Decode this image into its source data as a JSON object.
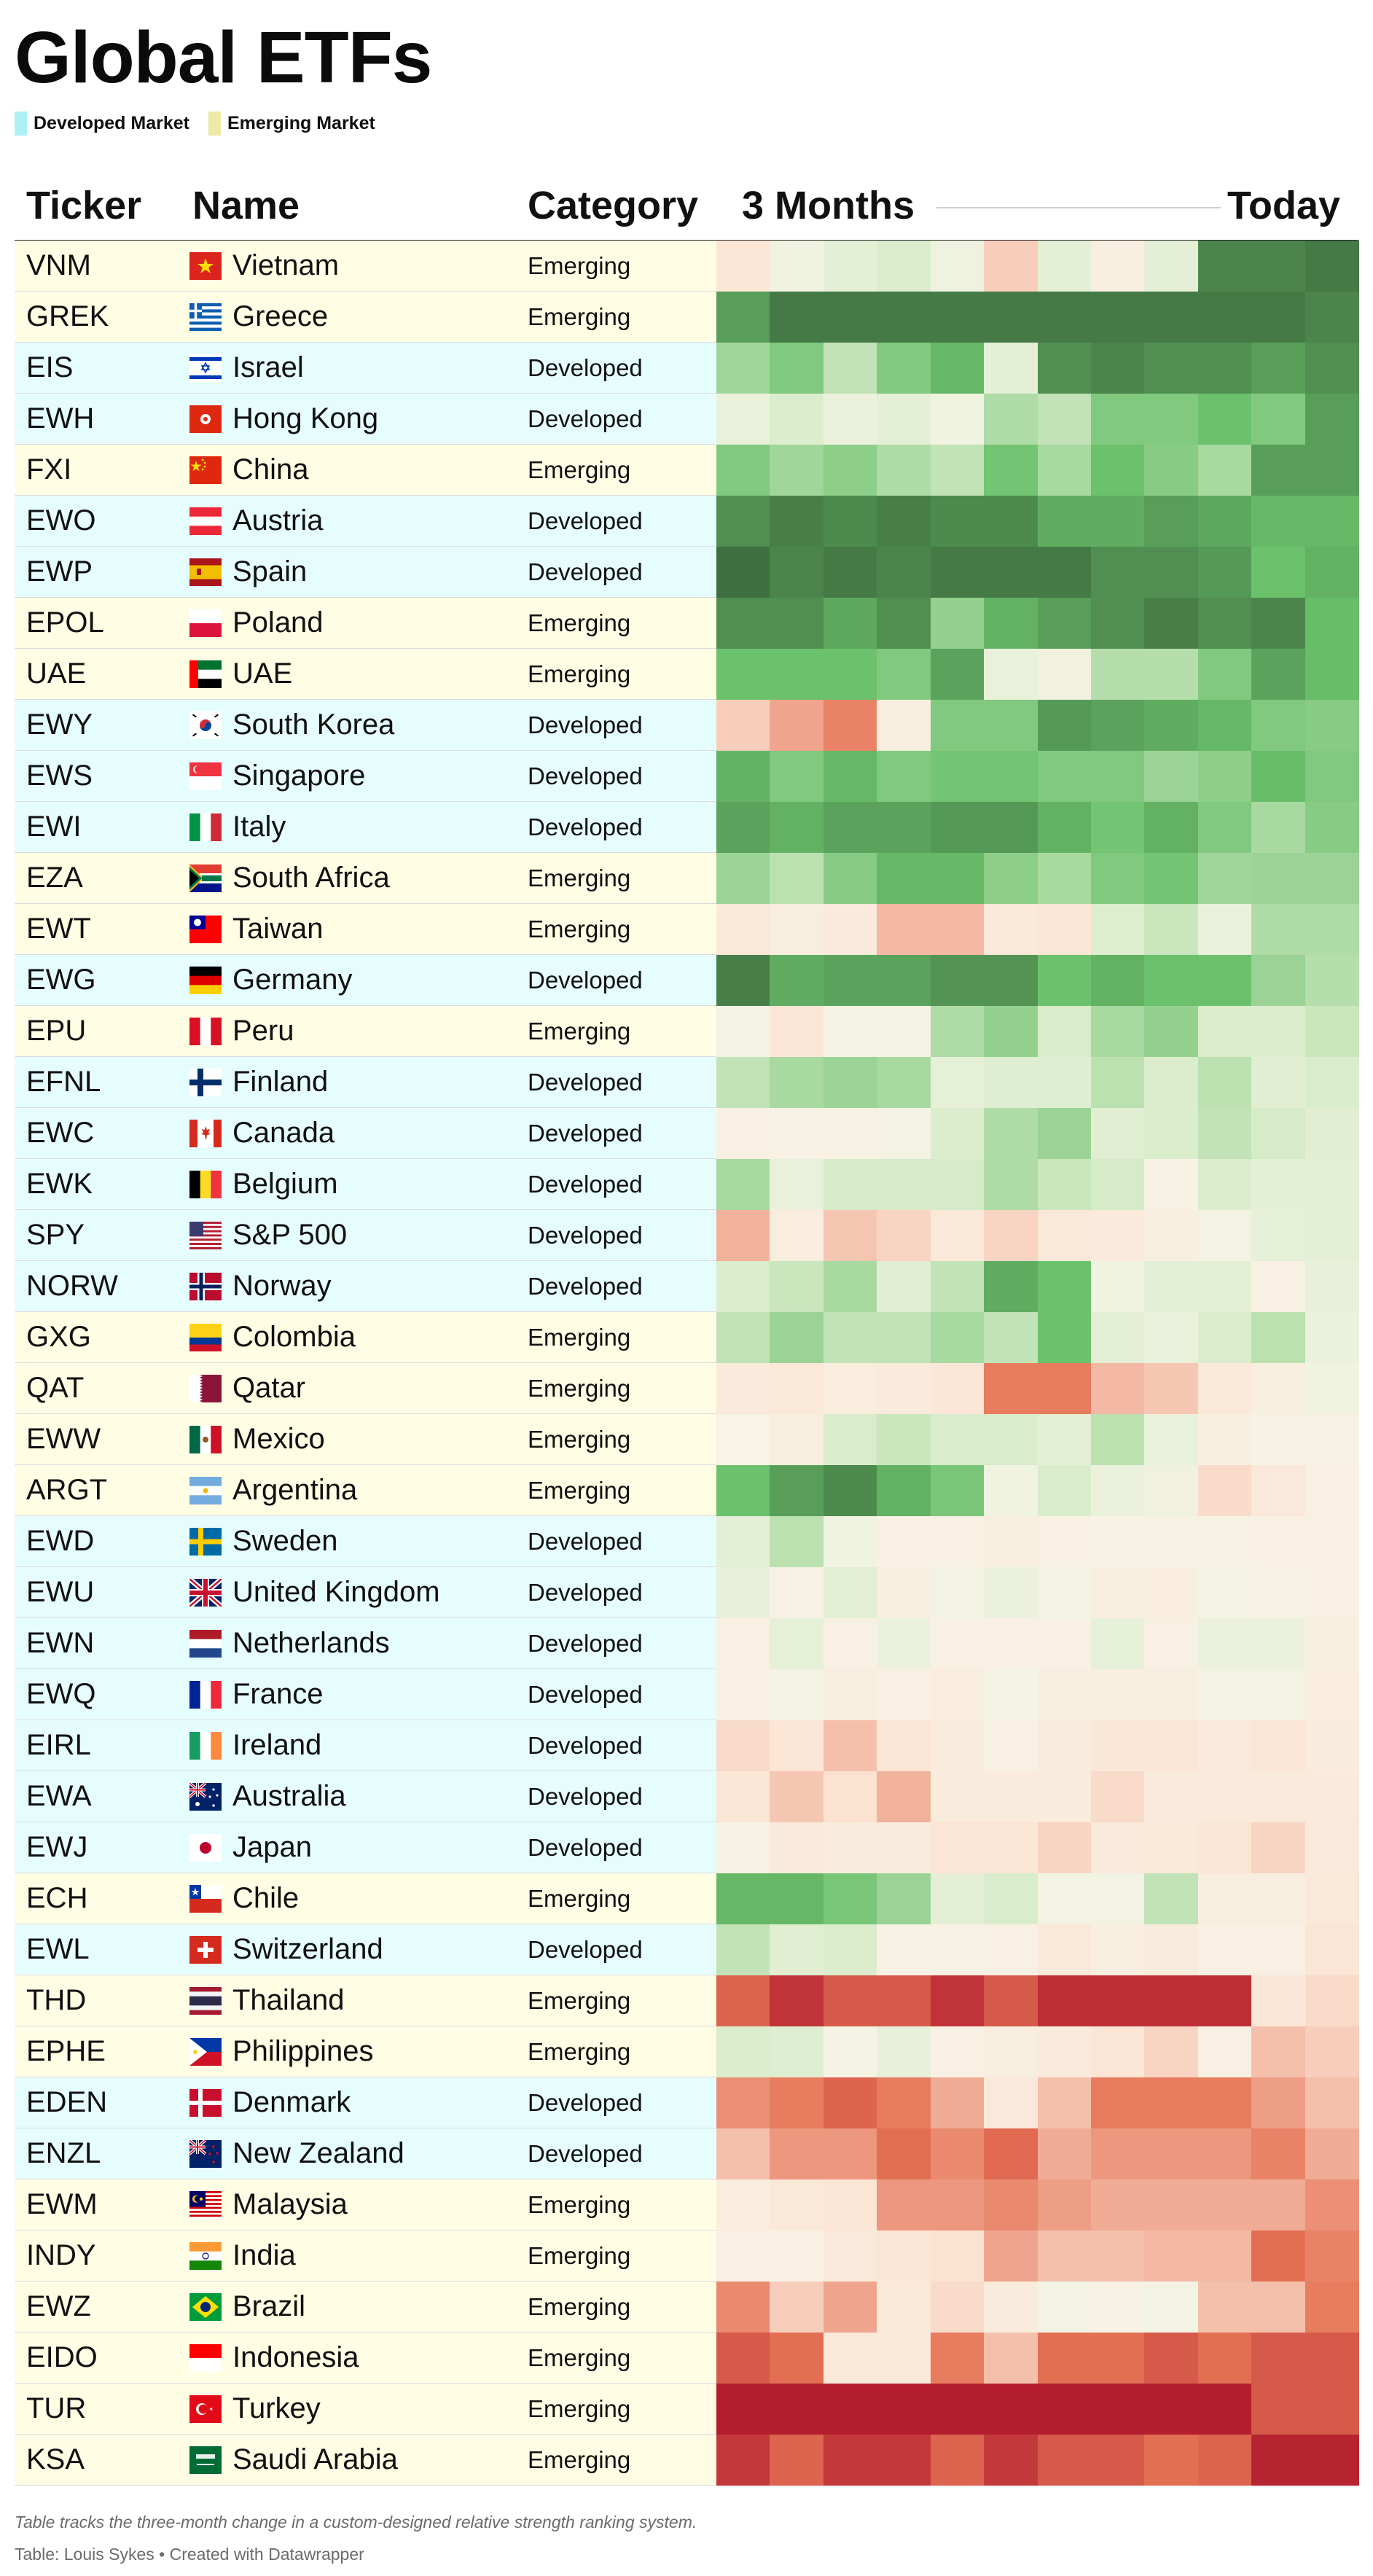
{
  "title": "Global ETFs",
  "legend": [
    {
      "label": "Developed Market",
      "color": "#aef1f3"
    },
    {
      "label": "Emerging Market",
      "color": "#ede9a7"
    }
  ],
  "header": {
    "ticker": "Ticker",
    "name": "Name",
    "category": "Category",
    "period_start": "3 Months",
    "period_end": "Today"
  },
  "row_colors": {
    "Developed": "#e6fdfe",
    "Emerging": "#fffde4"
  },
  "chart_data": {
    "type": "heatmap",
    "title": "Global ETFs",
    "color_scale": {
      "min": -5,
      "max": 5,
      "colors": [
        "#b0182c",
        "#e57355",
        "#fbe4d4",
        "#f7f4e6",
        "#d8ecca",
        "#6ac06b",
        "#3d6b3e"
      ]
    },
    "columns": 12,
    "rows": [
      {
        "ticker": "VNM",
        "name": "Vietnam",
        "category": "Emerging",
        "flag": "vietnam",
        "values": [
          -1.5,
          0.3,
          1,
          1.5,
          0.5,
          -2,
          1,
          -0.5,
          1,
          4.5,
          4.5,
          4.7
        ]
      },
      {
        "ticker": "GREK",
        "name": "Greece",
        "category": "Emerging",
        "flag": "greece",
        "values": [
          4,
          4.7,
          4.7,
          4.7,
          4.7,
          4.7,
          4.7,
          4.7,
          4.7,
          4.7,
          4.7,
          4.5
        ]
      },
      {
        "ticker": "EIS",
        "name": "Israel",
        "category": "Developed",
        "flag": "israel",
        "values": [
          2.5,
          3,
          2,
          3,
          3.5,
          1,
          4.3,
          4.5,
          4.3,
          4.3,
          4,
          4.3
        ]
      },
      {
        "ticker": "EWH",
        "name": "Hong Kong",
        "category": "Developed",
        "flag": "hongkong",
        "values": [
          0.7,
          1.5,
          0.6,
          1,
          0.3,
          2.3,
          2,
          3,
          3,
          3.3,
          3,
          4
        ]
      },
      {
        "ticker": "FXI",
        "name": "China",
        "category": "Emerging",
        "flag": "china",
        "values": [
          3,
          2.5,
          2.8,
          2.3,
          2,
          3.2,
          2.4,
          3.3,
          2.9,
          2.4,
          4,
          4
        ]
      },
      {
        "ticker": "EWO",
        "name": "Austria",
        "category": "Developed",
        "flag": "austria",
        "values": [
          4.3,
          4.6,
          4.4,
          4.6,
          4.4,
          4.4,
          3.7,
          3.7,
          4,
          3.8,
          3.5,
          3.5
        ]
      },
      {
        "ticker": "EWP",
        "name": "Spain",
        "category": "Developed",
        "flag": "spain",
        "values": [
          4.9,
          4.5,
          4.7,
          4.5,
          4.7,
          4.7,
          4.7,
          4.3,
          4.3,
          4.1,
          3.3,
          3.6
        ]
      },
      {
        "ticker": "EPOL",
        "name": "Poland",
        "category": "Emerging",
        "flag": "poland",
        "values": [
          4.3,
          4.3,
          3.8,
          4.3,
          2.7,
          3.6,
          4,
          4.3,
          4.6,
          4.3,
          4.5,
          3.4
        ]
      },
      {
        "ticker": "UAE",
        "name": "UAE",
        "category": "Emerging",
        "flag": "uae",
        "values": [
          3.3,
          3.3,
          3.3,
          3,
          3.9,
          0.7,
          0.4,
          2.2,
          2.2,
          3,
          3.9,
          3.4
        ]
      },
      {
        "ticker": "EWY",
        "name": "South Korea",
        "category": "Developed",
        "flag": "southkorea",
        "values": [
          -2,
          -2.6,
          -3.1,
          -0.6,
          3,
          3,
          4.1,
          3.9,
          3.7,
          3.5,
          3,
          2.9
        ]
      },
      {
        "ticker": "EWS",
        "name": "Singapore",
        "category": "Developed",
        "flag": "singapore",
        "values": [
          3.6,
          3,
          3.5,
          3,
          3.2,
          3.2,
          3,
          3,
          2.6,
          2.8,
          3.4,
          3
        ]
      },
      {
        "ticker": "EWI",
        "name": "Italy",
        "category": "Developed",
        "flag": "italy",
        "values": [
          3.9,
          3.6,
          3.9,
          3.9,
          4.1,
          4.1,
          3.6,
          3.2,
          3.6,
          3,
          2.4,
          2.9
        ]
      },
      {
        "ticker": "EZA",
        "name": "South Africa",
        "category": "Emerging",
        "flag": "southafrica",
        "values": [
          2.6,
          2.1,
          2.9,
          3.5,
          3.5,
          2.8,
          2.4,
          3,
          3.2,
          2.5,
          2.6,
          2.6
        ]
      },
      {
        "ticker": "EWT",
        "name": "Taiwan",
        "category": "Emerging",
        "flag": "taiwan",
        "values": [
          -1.3,
          -0.6,
          -1,
          -2.3,
          -2.3,
          -1.3,
          -1.5,
          1.4,
          1.9,
          0.7,
          2.3,
          2.3
        ]
      },
      {
        "ticker": "EWG",
        "name": "Germany",
        "category": "Developed",
        "flag": "germany",
        "values": [
          4.6,
          3.7,
          3.9,
          3.9,
          4.2,
          4.2,
          3.3,
          3.6,
          3.3,
          3.3,
          2.6,
          2.2
        ]
      },
      {
        "ticker": "EPU",
        "name": "Peru",
        "category": "Emerging",
        "flag": "peru",
        "values": [
          0.2,
          -1.5,
          0.1,
          0.1,
          2.3,
          2.7,
          1.6,
          2.4,
          2.7,
          1.5,
          1.5,
          1.9
        ]
      },
      {
        "ticker": "EFNL",
        "name": "Finland",
        "category": "Developed",
        "flag": "finland",
        "values": [
          2,
          2.4,
          2.6,
          2.4,
          0.9,
          1.3,
          1.3,
          2.1,
          1.5,
          2.1,
          1.2,
          1.6
        ]
      },
      {
        "ticker": "EWC",
        "name": "Canada",
        "category": "Developed",
        "flag": "canada",
        "values": [
          -0.4,
          -0.2,
          -0.2,
          0.2,
          1.5,
          2.3,
          2.6,
          1.2,
          1.5,
          2,
          1.7,
          1.2
        ]
      },
      {
        "ticker": "EWK",
        "name": "Belgium",
        "category": "Developed",
        "flag": "belgium",
        "values": [
          2.4,
          0.7,
          1.7,
          1.7,
          1.7,
          2.3,
          1.9,
          1.7,
          -0.2,
          1.5,
          1,
          1
        ]
      },
      {
        "ticker": "SPY",
        "name": "S&P 500",
        "category": "Developed",
        "flag": "usa",
        "values": [
          -2.4,
          -0.7,
          -2.1,
          -1.9,
          -1.2,
          -1.9,
          -1.2,
          -1,
          -0.5,
          0.2,
          0.9,
          1
        ]
      },
      {
        "ticker": "NORW",
        "name": "Norway",
        "category": "Developed",
        "flag": "norway",
        "values": [
          1.5,
          1.9,
          2.4,
          1.2,
          2,
          3.7,
          3.3,
          0.3,
          1.1,
          1.1,
          -0.3,
          0.8
        ]
      },
      {
        "ticker": "GXG",
        "name": "Colombia",
        "category": "Emerging",
        "flag": "colombia",
        "values": [
          2,
          2.6,
          2,
          2,
          2.4,
          2,
          3.3,
          1,
          0.7,
          1.5,
          2.1,
          0.6
        ]
      },
      {
        "ticker": "QAT",
        "name": "Qatar",
        "category": "Emerging",
        "flag": "qatar",
        "values": [
          -1,
          -1.3,
          -0.7,
          -1,
          -1.4,
          -3.2,
          -3.2,
          -2.3,
          -2.1,
          -1.3,
          -0.5,
          0.3
        ]
      },
      {
        "ticker": "EWW",
        "name": "Mexico",
        "category": "Emerging",
        "flag": "mexico",
        "values": [
          -0.1,
          -0.6,
          1.6,
          1.9,
          1.6,
          1.6,
          1,
          2.1,
          0.7,
          -0.5,
          -0.2,
          -0.2
        ]
      },
      {
        "ticker": "ARGT",
        "name": "Argentina",
        "category": "Emerging",
        "flag": "argentina",
        "values": [
          3.3,
          4,
          4.4,
          3.6,
          3.1,
          0.3,
          1.6,
          0.6,
          0.4,
          -1.8,
          -1.1,
          -0.3
        ]
      },
      {
        "ticker": "EWD",
        "name": "Sweden",
        "category": "Developed",
        "flag": "sweden",
        "values": [
          1,
          2.1,
          0.3,
          -0.3,
          -0.3,
          -0.5,
          -0.4,
          -0.2,
          -0.2,
          -0.2,
          -0.4,
          -0.4
        ]
      },
      {
        "ticker": "EWU",
        "name": "United Kingdom",
        "category": "Developed",
        "flag": "uk",
        "values": [
          0.8,
          -0.2,
          1.1,
          -0.5,
          0.2,
          0.6,
          0.2,
          -0.6,
          -0.7,
          0.2,
          -0.2,
          -0.4
        ]
      },
      {
        "ticker": "EWN",
        "name": "Netherlands",
        "category": "Developed",
        "flag": "netherlands",
        "values": [
          -0.4,
          0.9,
          -0.3,
          0.6,
          -0.3,
          -0.3,
          -0.3,
          0.9,
          -0.3,
          0.6,
          0.6,
          -0.5
        ]
      },
      {
        "ticker": "EWQ",
        "name": "France",
        "category": "Developed",
        "flag": "france",
        "values": [
          -0.3,
          0.2,
          -0.6,
          -0.4,
          -0.7,
          0.1,
          -0.6,
          -0.6,
          -0.6,
          0.2,
          0.2,
          -0.7
        ]
      },
      {
        "ticker": "EIRL",
        "name": "Ireland",
        "category": "Developed",
        "flag": "ireland",
        "values": [
          -1.8,
          -1.6,
          -2.2,
          -1.6,
          -0.8,
          -0.3,
          -0.8,
          -1.4,
          -1.6,
          -1,
          -1.5,
          -0.8
        ]
      },
      {
        "ticker": "EWA",
        "name": "Australia",
        "category": "Developed",
        "flag": "australia",
        "values": [
          -1.6,
          -2.1,
          -1.7,
          -2.4,
          -0.8,
          -0.8,
          -0.8,
          -1.8,
          -1,
          -1,
          -1,
          -1
        ]
      },
      {
        "ticker": "EWJ",
        "name": "Japan",
        "category": "Developed",
        "flag": "japan",
        "values": [
          -0.2,
          -1,
          -0.8,
          -0.8,
          -1.6,
          -1.6,
          -1.9,
          -1,
          -1.3,
          -1.6,
          -1.9,
          -1.1
        ]
      },
      {
        "ticker": "ECH",
        "name": "Chile",
        "category": "Emerging",
        "flag": "chile",
        "values": [
          3.5,
          3.5,
          3.1,
          2.6,
          1,
          1.6,
          0.2,
          0.2,
          2,
          -0.6,
          -0.6,
          -1.3
        ]
      },
      {
        "ticker": "EWL",
        "name": "Switzerland",
        "category": "Developed",
        "flag": "switzerland",
        "values": [
          2,
          1.2,
          1.5,
          -0.2,
          -0.2,
          -0.3,
          -1.2,
          -0.5,
          -0.8,
          -0.4,
          -0.4,
          -1.6
        ]
      },
      {
        "ticker": "THD",
        "name": "Thailand",
        "category": "Emerging",
        "flag": "thailand",
        "values": [
          -3.6,
          -4.5,
          -3.8,
          -3.8,
          -4.5,
          -3.8,
          -4.6,
          -4.6,
          -4.6,
          -4.6,
          -1.4,
          -1.8
        ]
      },
      {
        "ticker": "EPHE",
        "name": "Philippines",
        "category": "Emerging",
        "flag": "philippines",
        "values": [
          1.5,
          1.3,
          0.1,
          0.8,
          -0.3,
          -0.6,
          -1,
          -1.5,
          -1.9,
          -0.3,
          -2.2,
          -2
        ]
      },
      {
        "ticker": "EDEN",
        "name": "Denmark",
        "category": "Developed",
        "flag": "denmark",
        "values": [
          -2.9,
          -3.2,
          -3.6,
          -3.2,
          -2.5,
          -1.1,
          -2.2,
          -3.2,
          -3.2,
          -3.2,
          -2.7,
          -2.2
        ]
      },
      {
        "ticker": "ENZL",
        "name": "New Zealand",
        "category": "Developed",
        "flag": "newzealand",
        "values": [
          -2.2,
          -2.8,
          -2.8,
          -3.4,
          -3,
          -3.5,
          -2.5,
          -2.8,
          -2.8,
          -2.8,
          -3.1,
          -2.5
        ]
      },
      {
        "ticker": "EWM",
        "name": "Malaysia",
        "category": "Emerging",
        "flag": "malaysia",
        "values": [
          -0.7,
          -1.3,
          -1.5,
          -2.8,
          -2.8,
          -3,
          -2.7,
          -2.5,
          -2.5,
          -2.5,
          -2.5,
          -2.9
        ]
      },
      {
        "ticker": "INDY",
        "name": "India",
        "category": "Emerging",
        "flag": "india",
        "values": [
          -0.4,
          -0.4,
          -1.1,
          -1.5,
          -1.7,
          -2.6,
          -2.2,
          -2.2,
          -2.3,
          -2.3,
          -3.4,
          -3.1
        ]
      },
      {
        "ticker": "EWZ",
        "name": "Brazil",
        "category": "Emerging",
        "flag": "brazil",
        "values": [
          -3,
          -2,
          -2.6,
          -1.2,
          -1.8,
          -0.8,
          0.2,
          -0.2,
          0.2,
          -2.2,
          -2.2,
          -3.2
        ]
      },
      {
        "ticker": "EIDO",
        "name": "Indonesia",
        "category": "Emerging",
        "flag": "indonesia",
        "values": [
          -3.8,
          -3.4,
          -1.2,
          -1.2,
          -3.2,
          -2.2,
          -3.4,
          -3.4,
          -3.8,
          -3.4,
          -3.8,
          -3.8
        ]
      },
      {
        "ticker": "TUR",
        "name": "Turkey",
        "category": "Emerging",
        "flag": "turkey",
        "values": [
          -4.9,
          -4.9,
          -4.9,
          -4.9,
          -4.9,
          -4.9,
          -4.9,
          -4.9,
          -4.9,
          -4.9,
          -3.8,
          -3.8
        ]
      },
      {
        "ticker": "KSA",
        "name": "Saudi Arabia",
        "category": "Emerging",
        "flag": "saudiarabia",
        "values": [
          -4.4,
          -3.6,
          -4.4,
          -4.4,
          -3.6,
          -4.4,
          -3.8,
          -3.8,
          -3.4,
          -3.6,
          -4.8,
          -4.8
        ]
      }
    ]
  },
  "footnote": "Table tracks the three-month change in a custom-designed relative strength ranking system.",
  "credit": "Table: Louis Sykes • Created with Datawrapper"
}
